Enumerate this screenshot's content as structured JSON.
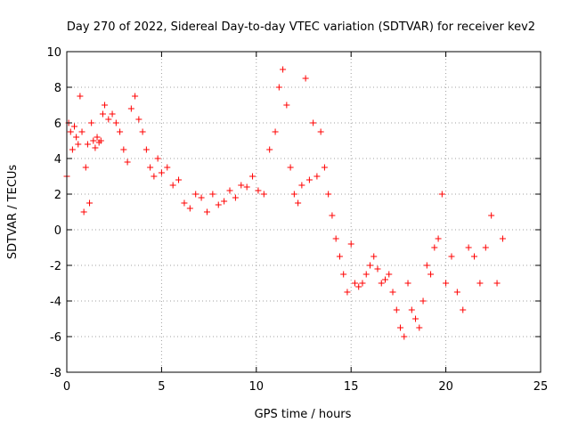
{
  "chart_data": {
    "type": "scatter",
    "title": "Day 270 of 2022, Sidereal Day-to-day VTEC variation (SDTVAR) for receiver kev2",
    "xlabel": "GPS time / hours",
    "ylabel": "SDTVAR / TECUs",
    "xlim": [
      0,
      25
    ],
    "ylim": [
      -8,
      10
    ],
    "xticks": [
      0,
      5,
      10,
      15,
      20,
      25
    ],
    "yticks": [
      -8,
      -6,
      -4,
      -2,
      0,
      2,
      4,
      6,
      8,
      10
    ],
    "grid": true,
    "marker": "+",
    "series": [
      {
        "name": "SDTVAR",
        "color": "#ff0000",
        "x": [
          0.0,
          0.1,
          0.2,
          0.3,
          0.4,
          0.5,
          0.6,
          0.7,
          0.8,
          0.9,
          1.0,
          1.1,
          1.2,
          1.3,
          1.4,
          1.5,
          1.6,
          1.7,
          1.8,
          1.9,
          2.0,
          2.2,
          2.4,
          2.6,
          2.8,
          3.0,
          3.2,
          3.4,
          3.6,
          3.8,
          4.0,
          4.2,
          4.4,
          4.6,
          4.8,
          5.0,
          5.3,
          5.6,
          5.9,
          6.2,
          6.5,
          6.8,
          7.1,
          7.4,
          7.7,
          8.0,
          8.3,
          8.6,
          8.9,
          9.2,
          9.5,
          9.8,
          10.1,
          10.4,
          10.7,
          11.0,
          11.2,
          11.4,
          11.6,
          11.8,
          12.0,
          12.2,
          12.4,
          12.6,
          12.8,
          13.0,
          13.2,
          13.4,
          13.6,
          13.8,
          14.0,
          14.2,
          14.4,
          14.6,
          14.8,
          15.0,
          15.2,
          15.4,
          15.6,
          15.8,
          16.0,
          16.2,
          16.4,
          16.6,
          16.8,
          17.0,
          17.2,
          17.4,
          17.6,
          17.8,
          18.0,
          18.2,
          18.4,
          18.6,
          18.8,
          19.0,
          19.2,
          19.4,
          19.6,
          19.8,
          20.0,
          20.3,
          20.6,
          20.9,
          21.2,
          21.5,
          21.8,
          22.1,
          22.4,
          22.7,
          23.0
        ],
        "y": [
          3.0,
          6.0,
          5.5,
          4.5,
          5.8,
          5.2,
          4.8,
          7.5,
          5.5,
          1.0,
          3.5,
          4.8,
          1.5,
          6.0,
          5.0,
          4.6,
          5.2,
          4.9,
          5.0,
          6.5,
          7.0,
          6.2,
          6.5,
          6.0,
          5.5,
          4.5,
          3.8,
          6.8,
          7.5,
          6.2,
          5.5,
          4.5,
          3.5,
          3.0,
          4.0,
          3.2,
          3.5,
          2.5,
          2.8,
          1.5,
          1.2,
          2.0,
          1.8,
          1.0,
          2.0,
          1.4,
          1.6,
          2.2,
          1.8,
          2.5,
          2.4,
          3.0,
          2.2,
          2.0,
          4.5,
          5.5,
          8.0,
          9.0,
          7.0,
          3.5,
          2.0,
          1.5,
          2.5,
          8.5,
          2.8,
          6.0,
          3.0,
          5.5,
          3.5,
          2.0,
          0.8,
          -0.5,
          -1.5,
          -2.5,
          -3.5,
          -0.8,
          -3.0,
          -3.2,
          -3.0,
          -2.5,
          -2.0,
          -1.5,
          -2.2,
          -3.0,
          -2.8,
          -2.5,
          -3.5,
          -4.5,
          -5.5,
          -6.0,
          -3.0,
          -4.5,
          -5.0,
          -5.5,
          -4.0,
          -2.0,
          -2.5,
          -1.0,
          -0.5,
          2.0,
          -3.0,
          -1.5,
          -3.5,
          -4.5,
          -1.0,
          -1.5,
          -3.0,
          -1.0,
          0.8,
          -3.0,
          -0.5
        ]
      }
    ]
  }
}
